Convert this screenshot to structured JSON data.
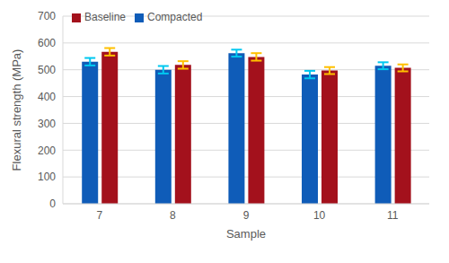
{
  "chart_data": {
    "type": "bar",
    "x_label": "Sample",
    "y_label": "Flexural strength (MPa)",
    "categories": [
      "7",
      "8",
      "9",
      "10",
      "11"
    ],
    "series": [
      {
        "name": "Compacted",
        "color": "#0f5cb8",
        "values": [
          530,
          500,
          562,
          482,
          515
        ],
        "error": [
          14,
          14,
          13,
          14,
          13
        ]
      },
      {
        "name": "Baseline",
        "color": "#a3111c",
        "values": [
          567,
          518,
          548,
          497,
          507
        ],
        "error": [
          14,
          14,
          14,
          13,
          13
        ]
      }
    ],
    "ylim": [
      0,
      700
    ],
    "yticks": [
      0,
      100,
      200,
      300,
      400,
      500,
      600,
      700
    ],
    "grid": true,
    "legend": "upper left"
  }
}
